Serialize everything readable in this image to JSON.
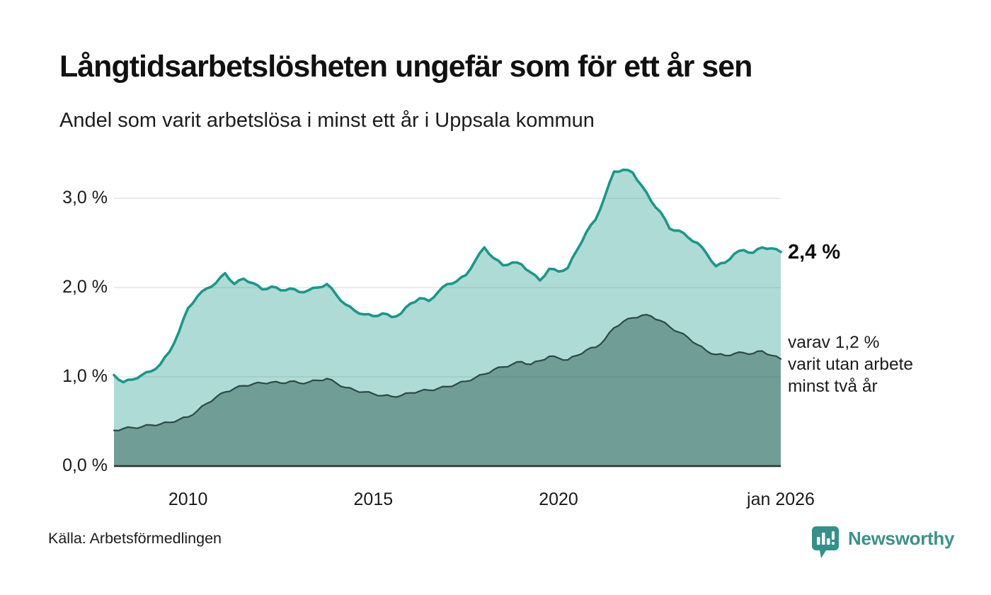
{
  "header": {
    "title": "Långtidsarbetslösheten ungefär som för ett år sen",
    "subtitle": "Andel som varit arbetslösa i minst ett år i Uppsala kommun"
  },
  "chart_data": {
    "type": "area",
    "mode": "overlay",
    "title": "Långtidsarbetslösheten ungefär som för ett år sen",
    "subtitle": "Andel som varit arbetslösa i minst ett år i Uppsala kommun",
    "unit": "%",
    "grid": true,
    "legend_position": "direct-labels-right",
    "x_domain": [
      2008,
      2026
    ],
    "y_domain": [
      0,
      3.5
    ],
    "x": [
      2008,
      2008.25,
      2008.5,
      2008.75,
      2009,
      2009.25,
      2009.5,
      2009.75,
      2010,
      2010.25,
      2010.5,
      2010.75,
      2011,
      2011.25,
      2011.5,
      2011.75,
      2012,
      2012.25,
      2012.5,
      2012.75,
      2013,
      2013.25,
      2013.5,
      2013.75,
      2014,
      2014.25,
      2014.5,
      2014.75,
      2015,
      2015.25,
      2015.5,
      2015.75,
      2016,
      2016.25,
      2016.5,
      2016.75,
      2017,
      2017.25,
      2017.5,
      2017.75,
      2018,
      2018.25,
      2018.5,
      2018.75,
      2019,
      2019.25,
      2019.5,
      2019.75,
      2020,
      2020.25,
      2020.5,
      2020.75,
      2021,
      2021.25,
      2021.5,
      2021.75,
      2022,
      2022.25,
      2022.5,
      2022.75,
      2023,
      2023.25,
      2023.5,
      2023.75,
      2024,
      2024.25,
      2024.5,
      2024.75,
      2025,
      2025.25,
      2025.5,
      2025.75,
      2026
    ],
    "series": [
      {
        "name": "Andel arbetslösa minst ett år",
        "color": "#18988a",
        "fill": "rgba(26,153,138,0.35)",
        "latest_value": 2.4,
        "values": [
          1.02,
          0.94,
          0.97,
          1.02,
          1.06,
          1.14,
          1.28,
          1.5,
          1.77,
          1.9,
          1.99,
          2.05,
          2.16,
          2.04,
          2.1,
          2.05,
          1.98,
          2.01,
          1.97,
          1.99,
          1.95,
          1.97,
          2.0,
          2.04,
          1.92,
          1.81,
          1.74,
          1.7,
          1.68,
          1.71,
          1.67,
          1.71,
          1.82,
          1.88,
          1.85,
          1.95,
          2.04,
          2.07,
          2.14,
          2.3,
          2.45,
          2.33,
          2.25,
          2.28,
          2.26,
          2.17,
          2.08,
          2.21,
          2.18,
          2.22,
          2.42,
          2.62,
          2.76,
          3.02,
          3.3,
          3.32,
          3.29,
          3.14,
          2.97,
          2.85,
          2.66,
          2.64,
          2.56,
          2.5,
          2.38,
          2.24,
          2.28,
          2.38,
          2.42,
          2.39,
          2.45,
          2.44,
          2.4
        ]
      },
      {
        "name": "Andel arbetslösa minst två år",
        "color": "#2c4a44",
        "fill": "rgba(36,84,76,0.45)",
        "latest_value": 1.2,
        "values": [
          0.4,
          0.42,
          0.43,
          0.44,
          0.46,
          0.47,
          0.49,
          0.52,
          0.55,
          0.62,
          0.7,
          0.77,
          0.83,
          0.87,
          0.9,
          0.92,
          0.93,
          0.94,
          0.93,
          0.95,
          0.93,
          0.94,
          0.96,
          0.98,
          0.93,
          0.88,
          0.85,
          0.83,
          0.81,
          0.79,
          0.78,
          0.79,
          0.82,
          0.84,
          0.85,
          0.87,
          0.89,
          0.92,
          0.95,
          0.99,
          1.03,
          1.08,
          1.11,
          1.14,
          1.17,
          1.14,
          1.18,
          1.23,
          1.21,
          1.19,
          1.24,
          1.3,
          1.33,
          1.42,
          1.55,
          1.62,
          1.66,
          1.69,
          1.68,
          1.63,
          1.56,
          1.5,
          1.44,
          1.36,
          1.29,
          1.25,
          1.24,
          1.26,
          1.27,
          1.26,
          1.29,
          1.24,
          1.2
        ]
      }
    ],
    "y_ticks": [
      {
        "value": 3,
        "label": "3,0 %"
      },
      {
        "value": 2,
        "label": "2,0 %"
      },
      {
        "value": 1,
        "label": "1,0 %"
      },
      {
        "value": 0,
        "label": "0,0 %"
      }
    ],
    "x_ticks": [
      {
        "value": 2010,
        "label": "2010"
      },
      {
        "value": 2015,
        "label": "2015"
      },
      {
        "value": 2020,
        "label": "2020"
      },
      {
        "value": 2026,
        "label": "jan 2026"
      }
    ],
    "annotations": {
      "latest_total": "2,4 %",
      "subnote_lines": [
        "varav 1,2 %",
        "varit utan arbete",
        "minst två år"
      ]
    }
  },
  "footer": {
    "source": "Källa: Arbetsförmedlingen",
    "logo_text": "Newsworthy",
    "logo_color": "#3a938b"
  }
}
